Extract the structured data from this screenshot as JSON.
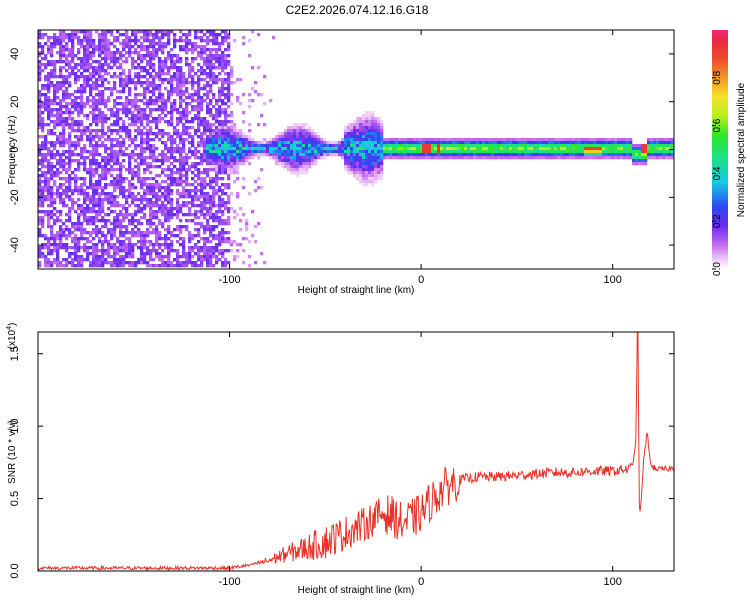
{
  "title": "C2E2.2026.074.12.16.G18",
  "colorbar": {
    "label": "Normalized spectral amplitude",
    "ticks": [
      "0.0",
      "0.2",
      "0.4",
      "0.6",
      "0.8"
    ],
    "tick_values": [
      0.0,
      0.2,
      0.4,
      0.6,
      0.8
    ],
    "range": [
      0.0,
      1.0
    ]
  },
  "chart_data": [
    {
      "type": "heatmap",
      "title": "C2E2.2026.074.12.16.G18",
      "xlabel": "Height of straight line (km)",
      "ylabel": "Frequency (Hz)",
      "xlim": [
        -200,
        132
      ],
      "ylim": [
        -50,
        50
      ],
      "xticks": [
        -100,
        0,
        100
      ],
      "xtick_labels": [
        "-100",
        "0",
        "100"
      ],
      "yticks": [
        -40,
        -20,
        0,
        20,
        40
      ],
      "ytick_labels": [
        "-40",
        "-20",
        "0",
        "20",
        "40"
      ],
      "features": [
        {
          "name": "noise",
          "x_range": [
            -200,
            -100
          ],
          "freq_range": [
            -50,
            50
          ],
          "amplitude": 0.1
        },
        {
          "name": "broad-band",
          "x_range": [
            -112,
            -20
          ],
          "freq_halfwidth": 5,
          "amplitude": 0.35
        },
        {
          "name": "narrow-band",
          "x_range": [
            -20,
            132
          ],
          "freq_halfwidth": 3,
          "amplitude": 0.6
        },
        {
          "name": "peak",
          "x_range": [
            85,
            95
          ],
          "freq": -1,
          "amplitude": 0.9
        }
      ]
    },
    {
      "type": "line",
      "xlabel": "Height of straight line (km)",
      "ylabel": "SNR (10 * v/v)",
      "y_scale_label": "(x10",
      "y_scale_exp": "4",
      "xlim": [
        -200,
        132
      ],
      "ylim": [
        0.0,
        1.65
      ],
      "xticks": [
        -100,
        0,
        100
      ],
      "xtick_labels": [
        "-100",
        "0",
        "100"
      ],
      "yticks": [
        0.0,
        0.5,
        1.0,
        1.5
      ],
      "ytick_labels": [
        "0.0",
        "0.5",
        "1.0",
        "1.5"
      ],
      "color": "#e8332a",
      "series": [
        {
          "name": "SNR",
          "x": [
            -200,
            -150,
            -100,
            -90,
            -80,
            -70,
            -60,
            -50,
            -40,
            -30,
            -20,
            -15,
            -10,
            -5,
            0,
            5,
            10,
            15,
            20,
            25,
            30,
            40,
            50,
            60,
            70,
            80,
            90,
            100,
            105,
            108,
            110,
            112,
            113,
            114,
            115,
            116,
            118,
            120,
            125,
            132
          ],
          "y": [
            0.02,
            0.02,
            0.02,
            0.04,
            0.07,
            0.12,
            0.16,
            0.2,
            0.26,
            0.32,
            0.4,
            0.38,
            0.33,
            0.36,
            0.4,
            0.48,
            0.55,
            0.6,
            0.63,
            0.64,
            0.65,
            0.65,
            0.66,
            0.67,
            0.68,
            0.68,
            0.69,
            0.69,
            0.7,
            0.7,
            0.72,
            0.85,
            1.68,
            0.35,
            0.5,
            0.75,
            0.95,
            0.72,
            0.7,
            0.71
          ]
        }
      ]
    }
  ]
}
